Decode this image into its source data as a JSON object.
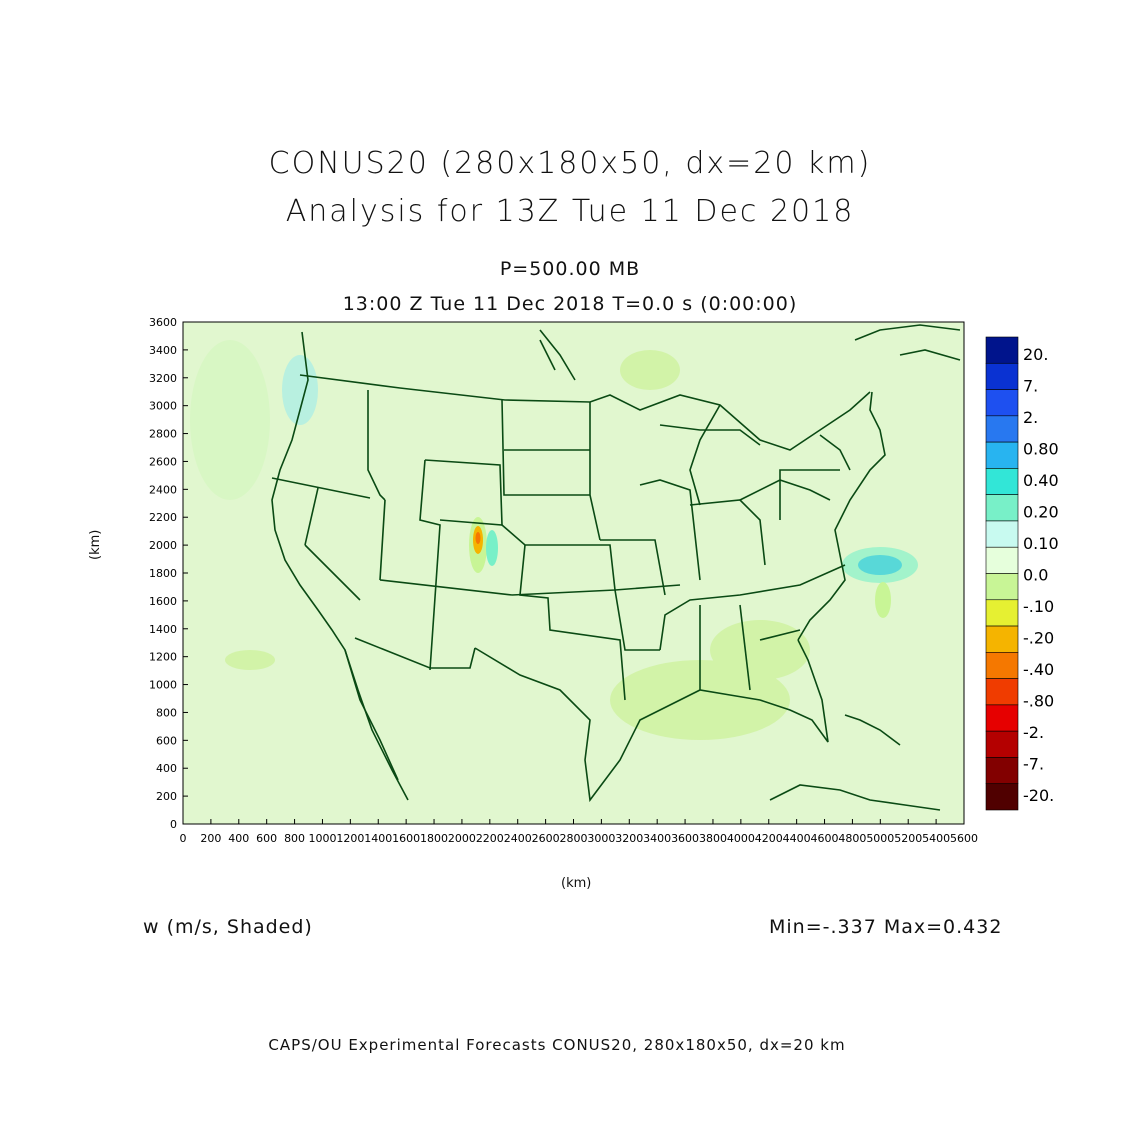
{
  "titles": {
    "main": "CONUS20 (280x180x50, dx=20 km)",
    "analysis": "Analysis for 13Z Tue 11 Dec 2018",
    "level": "P=500.00 MB",
    "time": "13:00 Z Tue 11 Dec 2018    T=0.0 s (0:00:00)"
  },
  "axes": {
    "x_label": "(km)",
    "y_label": "(km)",
    "x_ticks": [
      "0",
      "200",
      "400",
      "600",
      "800",
      "1000",
      "1200",
      "1400",
      "1600",
      "1800",
      "2000",
      "2200",
      "2400",
      "2600",
      "2800",
      "3000",
      "3200",
      "3400",
      "3600",
      "3800",
      "4000",
      "4200",
      "4400",
      "4600",
      "4800",
      "5000",
      "5200",
      "5400",
      "5600"
    ],
    "y_ticks": [
      "0",
      "200",
      "400",
      "600",
      "800",
      "1000",
      "1200",
      "1400",
      "1600",
      "1800",
      "2000",
      "2200",
      "2400",
      "2600",
      "2800",
      "3000",
      "3200",
      "3400",
      "3600"
    ],
    "x_range": [
      0,
      5600
    ],
    "y_range": [
      0,
      3600
    ]
  },
  "colorbar": {
    "labels": [
      "20.",
      "7.",
      "2.",
      "0.80",
      "0.40",
      "0.20",
      "0.10",
      "0.0",
      "-.10",
      "-.20",
      "-.40",
      "-.80",
      "-2.",
      "-7.",
      "-20."
    ],
    "colors": [
      "#00148c",
      "#0a32d2",
      "#1e50f0",
      "#2878f0",
      "#28b4f0",
      "#32e6d7",
      "#78f0c8",
      "#c8faf0",
      "#e6ffdc",
      "#c8f596",
      "#e6f032",
      "#f5b400",
      "#f57800",
      "#f03c00",
      "#e60000",
      "#b40000",
      "#820000",
      "#500000"
    ]
  },
  "field_label": "w (m/s, Shaded)",
  "minmax": "Min=-.337 Max=0.432",
  "footer": "CAPS/OU Experimental Forecasts  CONUS20, 280x180x50, dx=20 km",
  "map_colors": {
    "background": "#e1f7cf",
    "coast": "#0a4a14"
  }
}
